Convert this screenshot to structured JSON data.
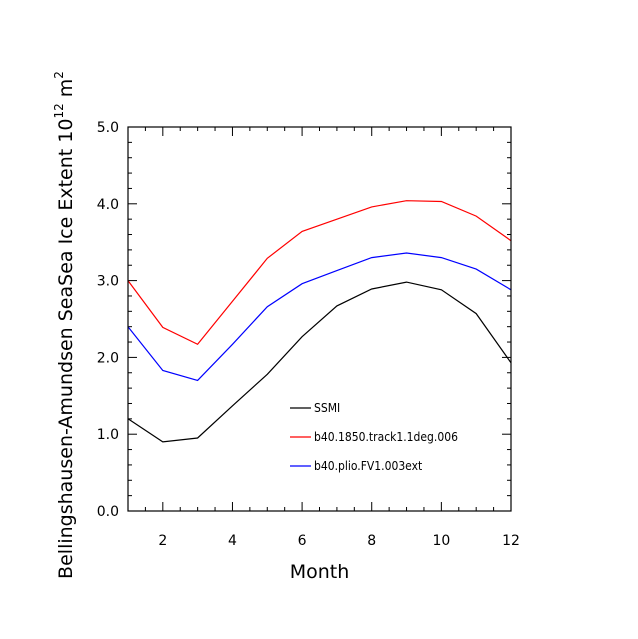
{
  "chart_data": {
    "type": "line",
    "xlabel": "Month",
    "ylabel_main": "Bellingshausen-Amundsen SeaSea Ice Extent 10",
    "ylabel_exp": "12",
    "ylabel_unit": " m",
    "ylabel_unit_exp": "2",
    "xlim": [
      1,
      12
    ],
    "ylim": [
      0,
      5
    ],
    "xticks": [
      2,
      4,
      6,
      8,
      10,
      12
    ],
    "yticks": [
      0,
      1,
      2,
      3,
      4,
      5
    ],
    "ytick_labels": [
      "0.0",
      "1.0",
      "2.0",
      "3.0",
      "4.0",
      "5.0"
    ],
    "x": [
      1,
      2,
      3,
      4,
      5,
      6,
      7,
      8,
      9,
      10,
      11,
      12
    ],
    "series": [
      {
        "name": "SSMI",
        "color": "#000000",
        "values": [
          1.2,
          0.9,
          0.95,
          1.37,
          1.78,
          2.27,
          2.67,
          2.89,
          2.98,
          2.88,
          2.57,
          1.93
        ]
      },
      {
        "name": "b40.1850.track1.1deg.006",
        "color": "#ff0000",
        "values": [
          3.0,
          2.39,
          2.17,
          2.73,
          3.29,
          3.64,
          3.8,
          3.96,
          4.04,
          4.03,
          3.84,
          3.52
        ]
      },
      {
        "name": "b40.plio.FV1.003ext",
        "color": "#0000ff",
        "values": [
          2.4,
          1.83,
          1.7,
          2.17,
          2.66,
          2.96,
          3.13,
          3.3,
          3.36,
          3.3,
          3.15,
          2.88
        ]
      }
    ],
    "legend_position": "lower-right"
  }
}
